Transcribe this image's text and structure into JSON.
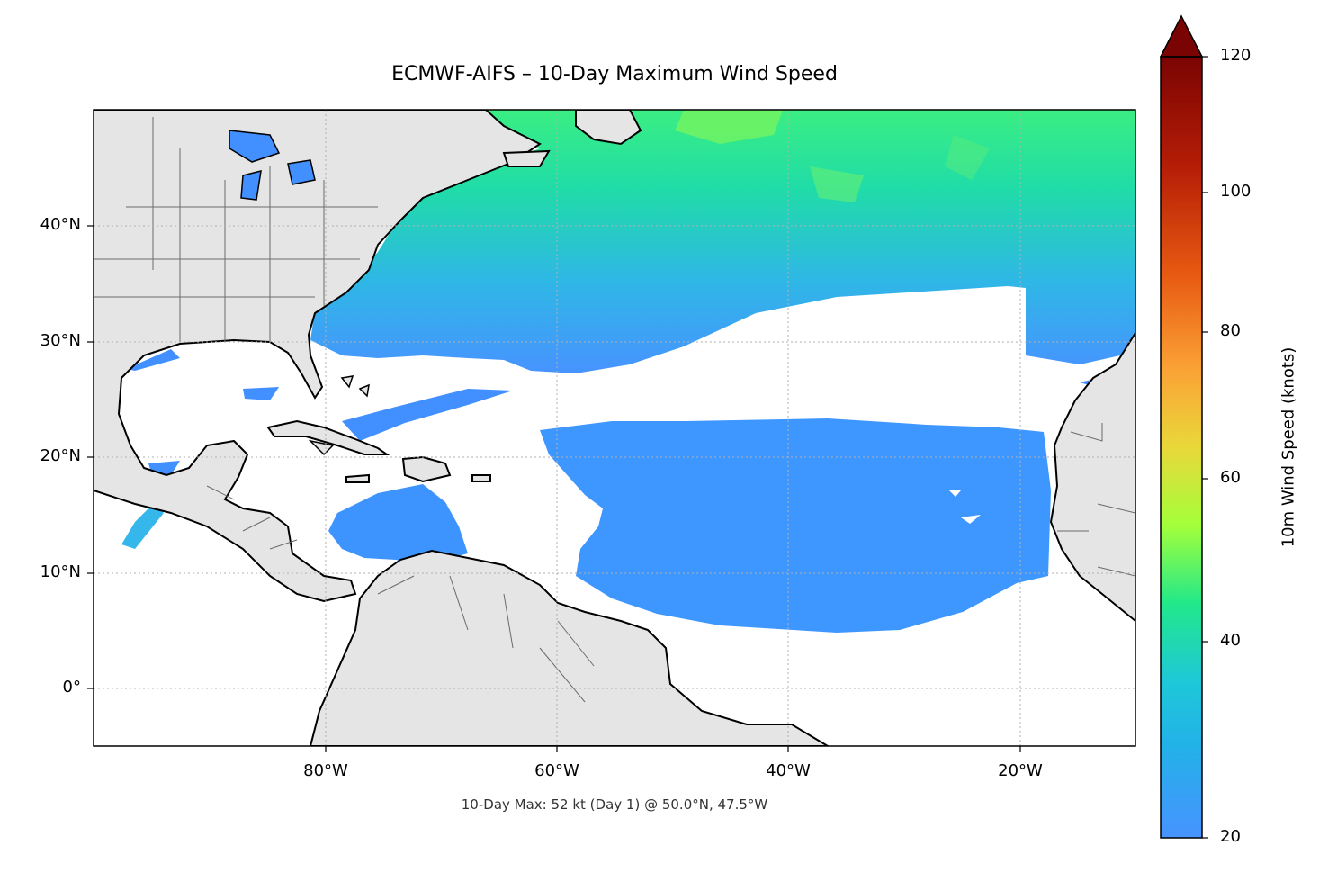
{
  "title": "ECMWF-AIFS – 10-Day Maximum Wind Speed",
  "footer": "10-Day Max: 52 kt (Day 1) @ 50.0°N, 47.5°W",
  "map": {
    "extent": {
      "lon": [
        -100,
        -10
      ],
      "lat": [
        -5,
        50
      ]
    },
    "lat_labels": [
      "40°N",
      "30°N",
      "20°N",
      "10°N",
      "0°"
    ],
    "lon_labels": [
      "80°W",
      "60°W",
      "40°W",
      "20°W"
    ],
    "colors": {
      "land": "#e5e5e5",
      "ocean_low": "#4793ff",
      "coast": "#000000",
      "borders": "#6b6b6b",
      "grid": "#b0b0b0"
    }
  },
  "colorbar": {
    "label": "10m Wind Speed (knots)",
    "ticks": [
      "20",
      "40",
      "60",
      "80",
      "100",
      "120"
    ],
    "range": [
      20,
      120
    ],
    "extend": "max",
    "colors": [
      "#4793ff",
      "#1ec8d8",
      "#22e88a",
      "#a3ff3a",
      "#e9d83a",
      "#fba235",
      "#e85a12",
      "#b51d06",
      "#7a0403"
    ]
  },
  "max_point": {
    "value_kt": 52,
    "day": 1,
    "lat": 50.0,
    "lon": -47.5
  }
}
